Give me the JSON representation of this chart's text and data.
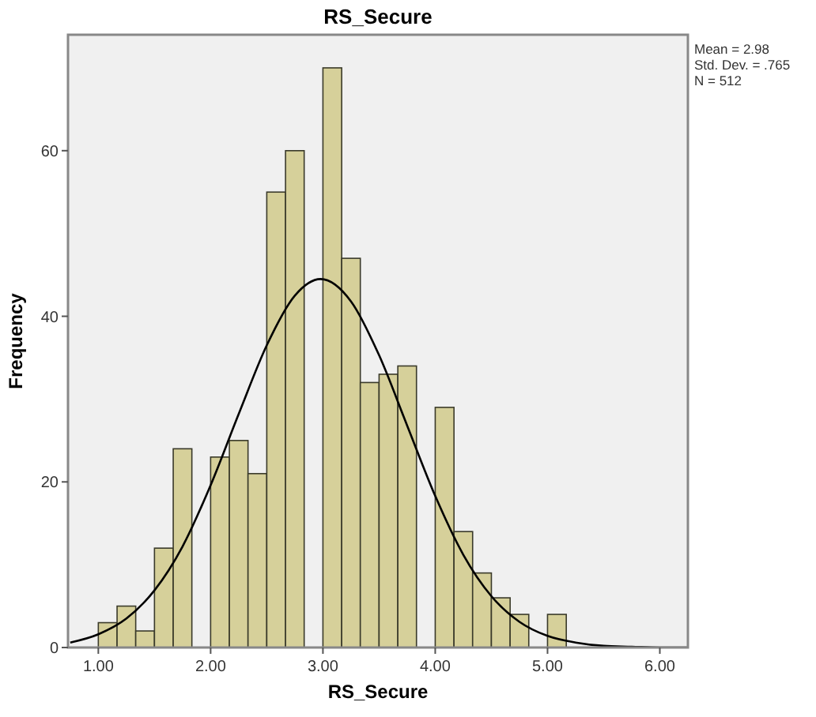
{
  "chart_data": {
    "type": "histogram",
    "title": "RS_Secure",
    "xlabel": "RS_Secure",
    "ylabel": "Frequency",
    "annotations": [
      "Mean = 2.98",
      "Std. Dev. = .765",
      "N = 512"
    ],
    "xlim": [
      0.73,
      6.25
    ],
    "ylim": [
      0,
      74
    ],
    "xticks": [
      {
        "value": 1,
        "label": "1.00"
      },
      {
        "value": 2,
        "label": "2.00"
      },
      {
        "value": 3,
        "label": "3.00"
      },
      {
        "value": 4,
        "label": "4.00"
      },
      {
        "value": 5,
        "label": "5.00"
      },
      {
        "value": 6,
        "label": "6.00"
      }
    ],
    "yticks": [
      0,
      20,
      40,
      60
    ],
    "grid": false,
    "series": [
      {
        "color": "#d6d09a",
        "bins": [
          1,
          1.167,
          1.333,
          1.5,
          1.667,
          1.833,
          2,
          2.167,
          2.333,
          2.5,
          2.667,
          2.833,
          3,
          3.167,
          3.333,
          3.5,
          3.667,
          3.833,
          4,
          4.167,
          4.333,
          4.5,
          4.667,
          4.833,
          5,
          5.167
        ],
        "values": [
          3,
          5,
          2,
          12,
          24,
          0,
          23,
          25,
          21,
          55,
          60,
          0,
          70,
          47,
          32,
          33,
          34,
          0,
          29,
          14,
          9,
          6,
          4,
          0,
          4
        ]
      },
      {
        "type": "line",
        "color": "#000000",
        "marker": "none",
        "x": [
          0.75,
          1,
          1.25,
          1.5,
          1.75,
          2,
          2.25,
          2.5,
          2.75,
          2.98,
          3.25,
          3.5,
          3.75,
          4,
          4.25,
          4.5,
          4.75,
          5,
          5.25,
          5.5,
          5.75,
          6,
          6.25
        ],
        "values": [
          0.6,
          1.6,
          3.5,
          6.9,
          12.2,
          19.6,
          28.2,
          36.5,
          42.5,
          44.5,
          41.8,
          35.3,
          26.8,
          18.3,
          11.2,
          6.2,
          3.1,
          1.4,
          0.6,
          0.2,
          0.1,
          0,
          0
        ]
      }
    ]
  }
}
